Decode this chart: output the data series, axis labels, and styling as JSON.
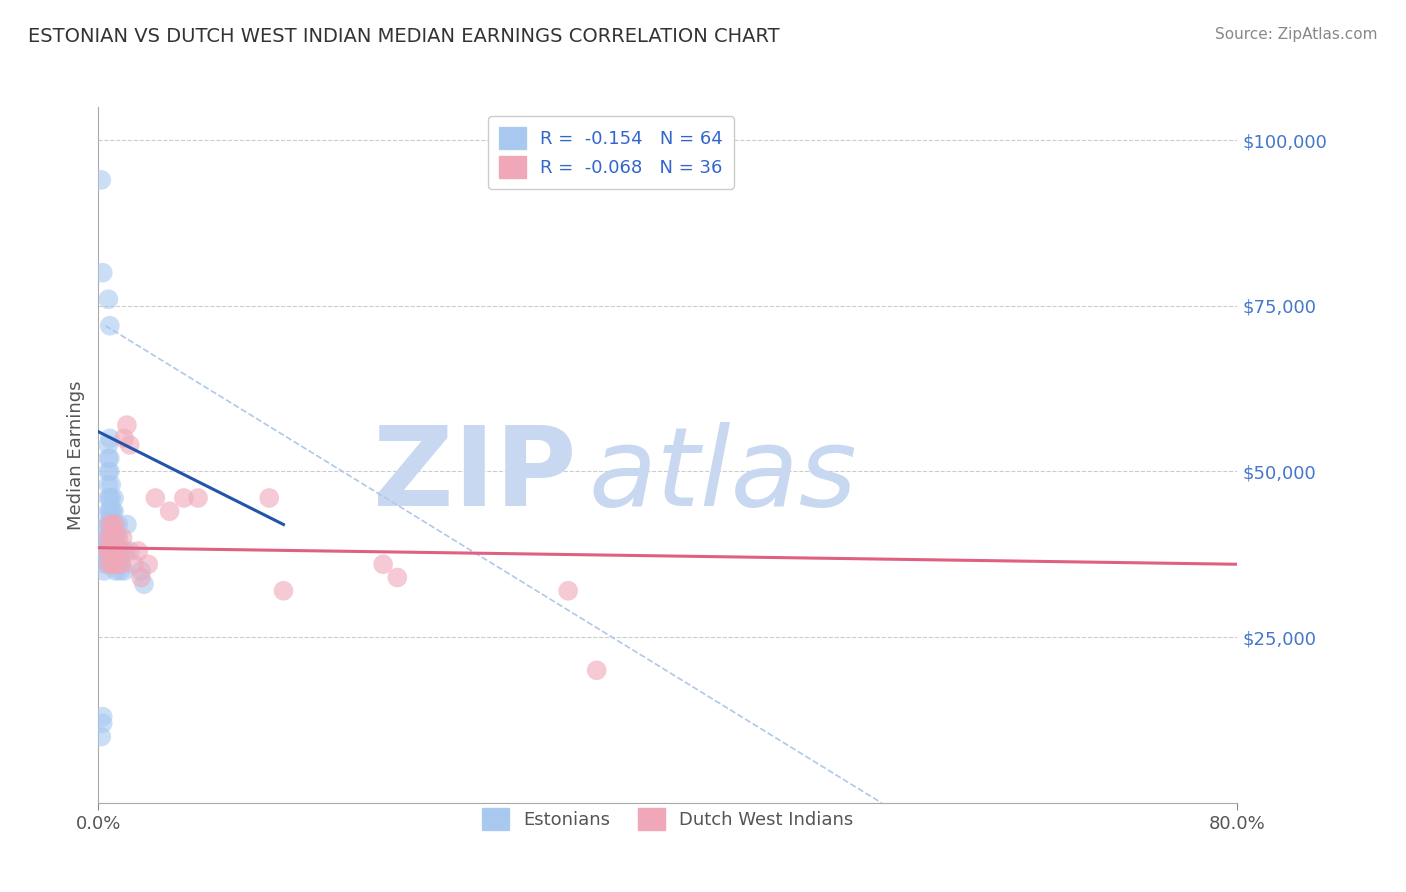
{
  "title": "ESTONIAN VS DUTCH WEST INDIAN MEDIAN EARNINGS CORRELATION CHART",
  "source": "Source: ZipAtlas.com",
  "ylabel": "Median Earnings",
  "yticks": [
    0,
    25000,
    50000,
    75000,
    100000
  ],
  "ytick_labels": [
    "",
    "$25,000",
    "$50,000",
    "$75,000",
    "$100,000"
  ],
  "xlim": [
    0.0,
    0.8
  ],
  "ylim": [
    0,
    105000
  ],
  "blue_color": "#a8c8f0",
  "pink_color": "#f0a8b8",
  "blue_line_color": "#2255aa",
  "pink_line_color": "#e06080",
  "dashed_color": "#b0c8e8",
  "watermark_color": "#c8d8f0",
  "background_color": "#ffffff",
  "est_x": [
    0.002,
    0.003,
    0.003,
    0.004,
    0.004,
    0.004,
    0.005,
    0.005,
    0.005,
    0.005,
    0.005,
    0.006,
    0.006,
    0.006,
    0.007,
    0.007,
    0.007,
    0.007,
    0.007,
    0.007,
    0.007,
    0.007,
    0.007,
    0.008,
    0.008,
    0.008,
    0.008,
    0.008,
    0.008,
    0.008,
    0.008,
    0.009,
    0.009,
    0.009,
    0.009,
    0.009,
    0.01,
    0.01,
    0.01,
    0.01,
    0.01,
    0.011,
    0.011,
    0.011,
    0.011,
    0.012,
    0.012,
    0.012,
    0.013,
    0.013,
    0.014,
    0.015,
    0.015,
    0.016,
    0.017,
    0.018,
    0.02,
    0.022,
    0.03,
    0.032,
    0.002,
    0.003,
    0.007,
    0.008
  ],
  "est_y": [
    10000,
    12000,
    13000,
    35000,
    37000,
    38000,
    36000,
    37000,
    38000,
    40000,
    42000,
    37000,
    38000,
    40000,
    38000,
    40000,
    42000,
    44000,
    46000,
    48000,
    50000,
    52000,
    54000,
    38000,
    40000,
    42000,
    44000,
    46000,
    50000,
    52000,
    55000,
    40000,
    42000,
    44000,
    46000,
    48000,
    36000,
    38000,
    40000,
    42000,
    44000,
    40000,
    42000,
    44000,
    46000,
    35000,
    37000,
    40000,
    38000,
    40000,
    42000,
    35000,
    37000,
    36000,
    38000,
    35000,
    42000,
    38000,
    35000,
    33000,
    94000,
    80000,
    76000,
    72000
  ],
  "dwi_x": [
    0.006,
    0.007,
    0.007,
    0.008,
    0.008,
    0.009,
    0.009,
    0.01,
    0.01,
    0.011,
    0.011,
    0.012,
    0.012,
    0.013,
    0.014,
    0.015,
    0.016,
    0.017,
    0.018,
    0.019,
    0.02,
    0.022,
    0.025,
    0.028,
    0.03,
    0.035,
    0.04,
    0.05,
    0.06,
    0.07,
    0.12,
    0.13,
    0.2,
    0.21,
    0.33,
    0.35
  ],
  "dwi_y": [
    38000,
    36000,
    40000,
    38000,
    42000,
    36000,
    40000,
    38000,
    42000,
    36000,
    40000,
    38000,
    42000,
    36000,
    40000,
    38000,
    36000,
    40000,
    55000,
    38000,
    57000,
    54000,
    36000,
    38000,
    34000,
    36000,
    46000,
    44000,
    46000,
    46000,
    46000,
    32000,
    36000,
    34000,
    32000,
    20000
  ],
  "blue_line_x": [
    0.0,
    0.13
  ],
  "blue_line_y": [
    56000,
    42000
  ],
  "pink_line_x": [
    0.0,
    0.8
  ],
  "pink_line_y": [
    38500,
    36000
  ],
  "dashed_line_x": [
    0.005,
    0.55
  ],
  "dashed_line_y": [
    72000,
    0
  ]
}
